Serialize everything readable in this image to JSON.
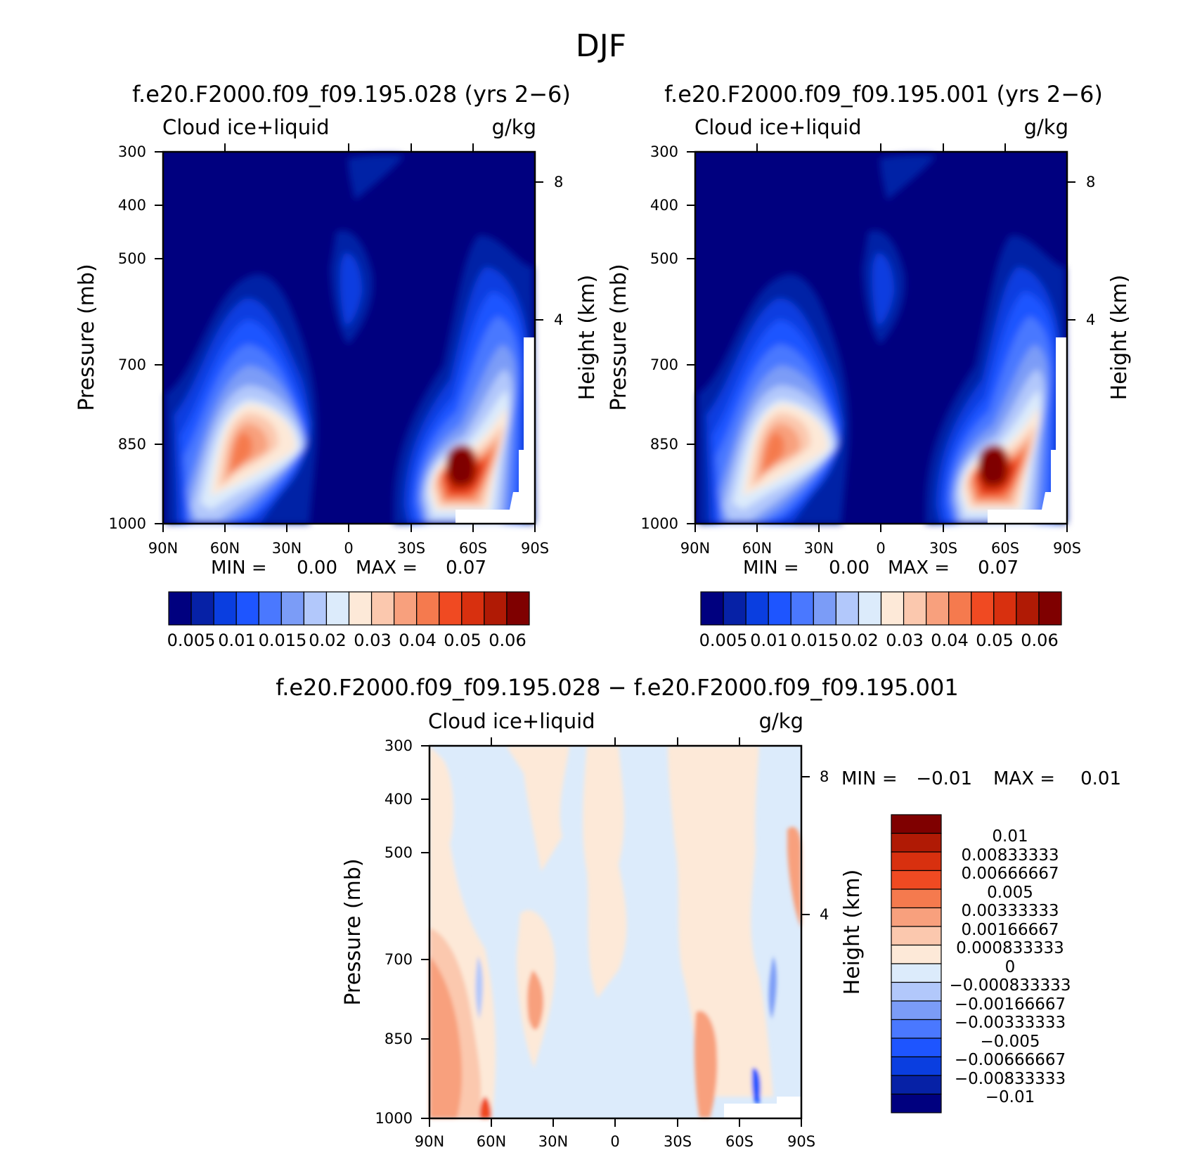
{
  "figure_title": "DJF",
  "chart_data": [
    {
      "type": "heatmap",
      "title": "f.e20.F2000.f09_f09.195.028 (yrs 2−6)",
      "variable": "Cloud ice+liquid",
      "units": "g/kg",
      "ylabel": "Pressure (mb)",
      "ylabel_right": "Height (km)",
      "x_ticks": [
        "90N",
        "60N",
        "30N",
        "0",
        "30S",
        "60S",
        "90S"
      ],
      "y_ticks": [
        "300",
        "400",
        "500",
        "700",
        "850",
        "1000"
      ],
      "y_right_ticks": [
        "8",
        "4"
      ],
      "min_label": "MIN =",
      "min_value": "0.00",
      "max_label": "MAX =",
      "max_value": "0.07",
      "colorbar_labels": [
        "0.005",
        "0.01",
        "0.015",
        "0.02",
        "0.03",
        "0.04",
        "0.05",
        "0.06"
      ],
      "colorbar_colors": [
        "#00007f",
        "#0621a6",
        "#0a3ee0",
        "#1e55ff",
        "#4a78ff",
        "#7b9cf7",
        "#b2c8fb",
        "#dcebfb",
        "#fde9d8",
        "#fbc8ae",
        "#f8a07d",
        "#f57a4e",
        "#f04a22",
        "#d8300f",
        "#b01a05",
        "#7f0000"
      ],
      "features": [
        {
          "lat": 58,
          "p": 860,
          "value": 0.045
        },
        {
          "lat": -55,
          "p": 900,
          "value": 0.07
        },
        {
          "lat": 0,
          "p": 560,
          "value": 0.01
        }
      ]
    },
    {
      "type": "heatmap",
      "title": "f.e20.F2000.f09_f09.195.001 (yrs 2−6)",
      "variable": "Cloud ice+liquid",
      "units": "g/kg",
      "ylabel": "Pressure (mb)",
      "ylabel_right": "Height (km)",
      "x_ticks": [
        "90N",
        "60N",
        "30N",
        "0",
        "30S",
        "60S",
        "90S"
      ],
      "y_ticks": [
        "300",
        "400",
        "500",
        "700",
        "850",
        "1000"
      ],
      "y_right_ticks": [
        "8",
        "4"
      ],
      "min_label": "MIN =",
      "min_value": "0.00",
      "max_label": "MAX =",
      "max_value": "0.07",
      "colorbar_labels": [
        "0.005",
        "0.01",
        "0.015",
        "0.02",
        "0.03",
        "0.04",
        "0.05",
        "0.06"
      ],
      "colorbar_colors": [
        "#00007f",
        "#0621a6",
        "#0a3ee0",
        "#1e55ff",
        "#4a78ff",
        "#7b9cf7",
        "#b2c8fb",
        "#dcebfb",
        "#fde9d8",
        "#fbc8ae",
        "#f8a07d",
        "#f57a4e",
        "#f04a22",
        "#d8300f",
        "#b01a05",
        "#7f0000"
      ],
      "features": [
        {
          "lat": 58,
          "p": 860,
          "value": 0.045
        },
        {
          "lat": -55,
          "p": 900,
          "value": 0.07
        },
        {
          "lat": 0,
          "p": 560,
          "value": 0.01
        }
      ]
    },
    {
      "type": "heatmap",
      "title": "f.e20.F2000.f09_f09.195.028 − f.e20.F2000.f09_f09.195.001",
      "variable": "Cloud ice+liquid",
      "units": "g/kg",
      "ylabel": "Pressure (mb)",
      "ylabel_right": "Height (km)",
      "x_ticks": [
        "90N",
        "60N",
        "30N",
        "0",
        "30S",
        "60S",
        "90S"
      ],
      "y_ticks": [
        "300",
        "400",
        "500",
        "700",
        "850",
        "1000"
      ],
      "y_right_ticks": [
        "8",
        "4"
      ],
      "min_label": "MIN =",
      "min_value": "−0.01",
      "max_label": "MAX =",
      "max_value": "0.01",
      "colorbar_labels": [
        "0.01",
        "0.00833333",
        "0.00666667",
        "0.005",
        "0.00333333",
        "0.00166667",
        "0.000833333",
        "0",
        "−0.000833333",
        "−0.00166667",
        "−0.00333333",
        "−0.005",
        "−0.00666667",
        "−0.00833333",
        "−0.01"
      ],
      "colorbar_colors": [
        "#7f0000",
        "#b01a05",
        "#d8300f",
        "#f04a22",
        "#f57a4e",
        "#f8a07d",
        "#fbc8ae",
        "#fde9d8",
        "#dcebfb",
        "#b2c8fb",
        "#7b9cf7",
        "#4a78ff",
        "#1e55ff",
        "#0a3ee0",
        "#0621a6",
        "#00007f"
      ]
    }
  ]
}
